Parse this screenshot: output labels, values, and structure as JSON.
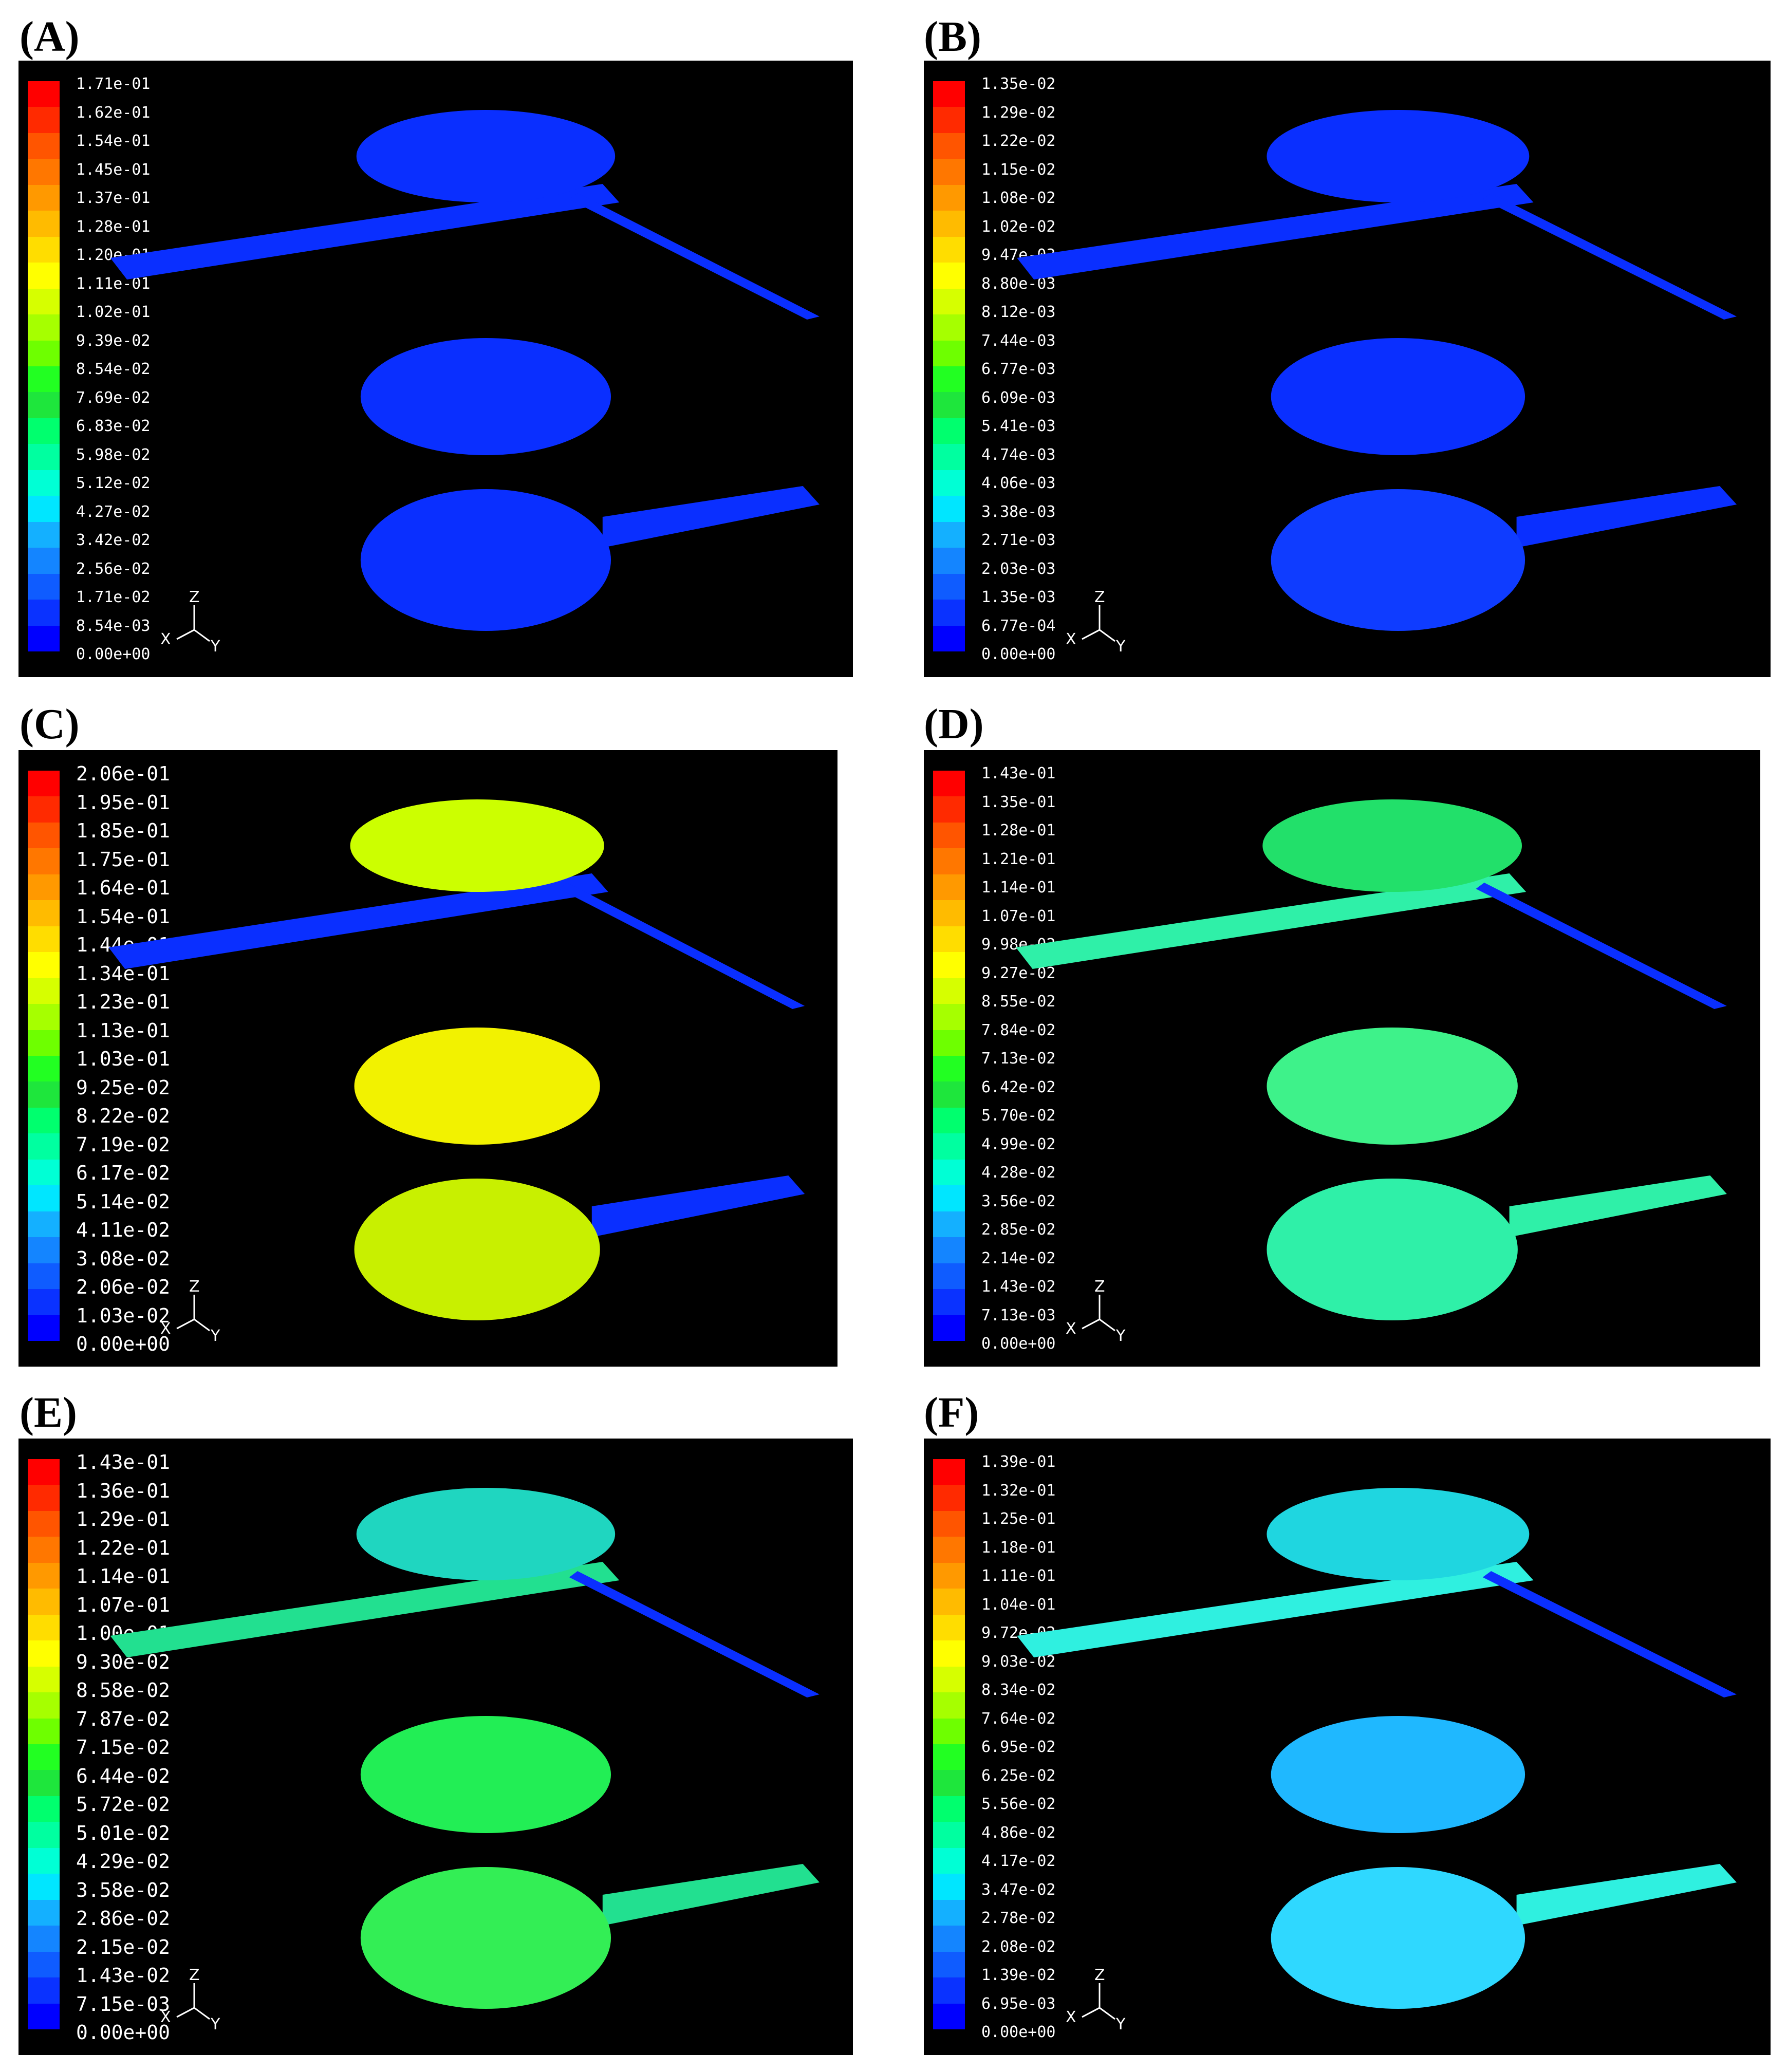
{
  "colormap": [
    "#0000ff",
    "#0a32ff",
    "#0f5cff",
    "#1485ff",
    "#14b0ff",
    "#00e6ff",
    "#00ffd5",
    "#00ffa0",
    "#00ff6e",
    "#1ee63c",
    "#22ff22",
    "#6eff00",
    "#a6ff00",
    "#d6ff00",
    "#ffff00",
    "#ffdd00",
    "#ffbb00",
    "#ff9900",
    "#ff7700",
    "#ff5500",
    "#ff2a00",
    "#ff0000"
  ],
  "axis_labels": {
    "z": "Z",
    "x": "X",
    "y": "Y"
  },
  "panels": [
    {
      "label": "(A)",
      "scale": [
        "1.71e-01",
        "1.62e-01",
        "1.54e-01",
        "1.45e-01",
        "1.37e-01",
        "1.28e-01",
        "1.20e-01",
        "1.11e-01",
        "1.02e-01",
        "9.39e-02",
        "8.54e-02",
        "7.69e-02",
        "6.83e-02",
        "5.98e-02",
        "5.12e-02",
        "4.27e-02",
        "3.42e-02",
        "2.56e-02",
        "1.71e-02",
        "8.54e-03",
        "0.00e+00"
      ],
      "surfaces": {
        "top": "#0a2fff",
        "mid": "#0a2fff",
        "bottom": "#0a2fff",
        "inlet": "#0a2fff",
        "outlet": "#0a2fff"
      }
    },
    {
      "label": "(B)",
      "scale": [
        "1.35e-02",
        "1.29e-02",
        "1.22e-02",
        "1.15e-02",
        "1.08e-02",
        "1.02e-02",
        "9.47e-03",
        "8.80e-03",
        "8.12e-03",
        "7.44e-03",
        "6.77e-03",
        "6.09e-03",
        "5.41e-03",
        "4.74e-03",
        "4.06e-03",
        "3.38e-03",
        "2.71e-03",
        "2.03e-03",
        "1.35e-03",
        "6.77e-04",
        "0.00e+00"
      ],
      "surfaces": {
        "top": "#0a2fff",
        "mid": "#0a2fff",
        "bottom": "#0f3cff",
        "inlet": "#0a2fff",
        "outlet": "#0a2fff"
      }
    },
    {
      "label": "(C)",
      "scale": [
        "2.06e-01",
        "1.95e-01",
        "1.85e-01",
        "1.75e-01",
        "1.64e-01",
        "1.54e-01",
        "1.44e-01",
        "1.34e-01",
        "1.23e-01",
        "1.13e-01",
        "1.03e-01",
        "9.25e-02",
        "8.22e-02",
        "7.19e-02",
        "6.17e-02",
        "5.14e-02",
        "4.11e-02",
        "3.08e-02",
        "2.06e-02",
        "1.03e-02",
        "0.00e+00"
      ],
      "surfaces": {
        "top": "#ccff00",
        "mid": "#f2f200",
        "bottom": "#c8f000",
        "inlet": "#0a2fff",
        "outlet": "#0a2fff"
      }
    },
    {
      "label": "(D)",
      "scale": [
        "1.43e-01",
        "1.35e-01",
        "1.28e-01",
        "1.21e-01",
        "1.14e-01",
        "1.07e-01",
        "9.98e-02",
        "9.27e-02",
        "8.55e-02",
        "7.84e-02",
        "7.13e-02",
        "6.42e-02",
        "5.70e-02",
        "4.99e-02",
        "4.28e-02",
        "3.56e-02",
        "2.85e-02",
        "2.14e-02",
        "1.43e-02",
        "7.13e-03",
        "0.00e+00"
      ],
      "surfaces": {
        "top": "#22e06a",
        "mid": "#3ef28a",
        "bottom": "#2ff0a8",
        "inlet": "#2ff0a8",
        "outlet": "#0a2fff"
      }
    },
    {
      "label": "(E)",
      "scale": [
        "1.43e-01",
        "1.36e-01",
        "1.29e-01",
        "1.22e-01",
        "1.14e-01",
        "1.07e-01",
        "1.00e-01",
        "9.30e-02",
        "8.58e-02",
        "7.87e-02",
        "7.15e-02",
        "6.44e-02",
        "5.72e-02",
        "5.01e-02",
        "4.29e-02",
        "3.58e-02",
        "2.86e-02",
        "2.15e-02",
        "1.43e-02",
        "7.15e-03",
        "0.00e+00"
      ],
      "surfaces": {
        "top": "#1fd6c0",
        "mid": "#22ee55",
        "bottom": "#33ee55",
        "inlet": "#22e090",
        "outlet": "#0a2fff"
      }
    },
    {
      "label": "(F)",
      "scale": [
        "1.39e-01",
        "1.32e-01",
        "1.25e-01",
        "1.18e-01",
        "1.11e-01",
        "1.04e-01",
        "9.72e-02",
        "9.03e-02",
        "8.34e-02",
        "7.64e-02",
        "6.95e-02",
        "6.25e-02",
        "5.56e-02",
        "4.86e-02",
        "4.17e-02",
        "3.47e-02",
        "2.78e-02",
        "2.08e-02",
        "1.39e-02",
        "6.95e-03",
        "0.00e+00"
      ],
      "surfaces": {
        "top": "#1fd6e0",
        "mid": "#1fb8ff",
        "bottom": "#2fd8ff",
        "inlet": "#2ff0e0",
        "outlet": "#0a2fff"
      }
    }
  ]
}
